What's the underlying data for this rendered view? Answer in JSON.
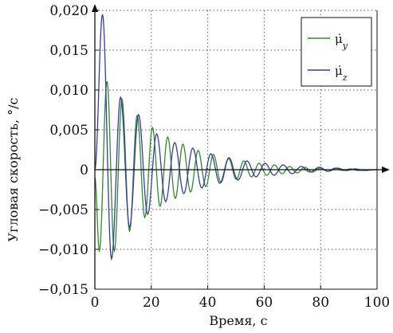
{
  "chart_data": {
    "type": "line",
    "xlabel": "Время, с",
    "ylabel": "Угловая скорость, °/с",
    "xlim": [
      0,
      100
    ],
    "ylim": [
      -0.015,
      0.02
    ],
    "x_ticks": [
      0,
      20,
      40,
      60,
      80,
      100
    ],
    "x_tick_labels": [
      "0",
      "20",
      "40",
      "60",
      "80",
      "100"
    ],
    "y_ticks": [
      -0.015,
      -0.01,
      -0.005,
      0,
      0.005,
      0.01,
      0.015,
      0.02
    ],
    "y_tick_labels": [
      "−0,015",
      "−0,010",
      "−0,005",
      "0",
      "0,005",
      "0,010",
      "0,015",
      "0,020"
    ],
    "grid": true,
    "legend_position": "top-right",
    "series": [
      {
        "name": "μ̇y",
        "label_base": "μ̇",
        "label_sub": "y",
        "color": "#2e8b2e",
        "start_value": -0.001,
        "extrema": [
          [
            1.6,
            -0.0102
          ],
          [
            4.3,
            0.0111
          ],
          [
            6.9,
            -0.0102
          ],
          [
            9.6,
            0.0088
          ],
          [
            12.3,
            -0.0077
          ],
          [
            15.0,
            0.0068
          ],
          [
            17.7,
            -0.006
          ],
          [
            20.4,
            0.0053
          ],
          [
            23.1,
            -0.0046
          ],
          [
            25.8,
            0.0041
          ],
          [
            28.5,
            -0.0036
          ],
          [
            31.2,
            0.0032
          ],
          [
            33.9,
            -0.0028
          ],
          [
            36.6,
            0.0024
          ],
          [
            39.3,
            -0.0021
          ],
          [
            42.0,
            0.0019
          ],
          [
            44.7,
            -0.0016
          ],
          [
            47.4,
            0.0014
          ],
          [
            50.1,
            -0.0012
          ],
          [
            52.8,
            0.0011
          ],
          [
            55.5,
            -0.0009
          ],
          [
            58.2,
            0.0008
          ],
          [
            60.9,
            -0.0007
          ],
          [
            63.6,
            0.0006
          ],
          [
            66.3,
            -0.0005
          ],
          [
            69.0,
            0.0004
          ],
          [
            71.7,
            -0.0004
          ],
          [
            74.4,
            0.0003
          ],
          [
            77.1,
            -0.0003
          ],
          [
            79.8,
            0.0002
          ],
          [
            82.5,
            -0.0002
          ],
          [
            85.2,
            0.0002
          ],
          [
            87.9,
            -0.0001
          ],
          [
            90.6,
            0.0001
          ],
          [
            93.3,
            -0.0001
          ],
          [
            100.0,
            0.0
          ]
        ]
      },
      {
        "name": "μ̇z",
        "label_base": "μ̇",
        "label_sub": "z",
        "color": "#3a3aa0",
        "start_value": 0.0,
        "extrema": [
          [
            2.7,
            0.0195
          ],
          [
            5.9,
            -0.0112
          ],
          [
            9.1,
            0.0091
          ],
          [
            12.3,
            -0.0072
          ],
          [
            15.5,
            0.0069
          ],
          [
            18.7,
            -0.0056
          ],
          [
            21.9,
            0.0045
          ],
          [
            25.1,
            -0.004
          ],
          [
            28.3,
            0.0034
          ],
          [
            31.5,
            -0.003
          ],
          [
            34.7,
            0.0027
          ],
          [
            37.9,
            -0.0023
          ],
          [
            41.1,
            0.002
          ],
          [
            44.3,
            -0.0017
          ],
          [
            47.5,
            0.0015
          ],
          [
            50.7,
            -0.0013
          ],
          [
            53.9,
            0.0011
          ],
          [
            57.1,
            -0.0009
          ],
          [
            60.3,
            0.0008
          ],
          [
            63.5,
            -0.0007
          ],
          [
            66.7,
            0.0006
          ],
          [
            69.9,
            -0.0005
          ],
          [
            73.1,
            0.0004
          ],
          [
            76.3,
            -0.0003
          ],
          [
            79.5,
            0.0003
          ],
          [
            82.7,
            -0.0002
          ],
          [
            85.9,
            0.0002
          ],
          [
            89.1,
            -0.0001
          ],
          [
            92.3,
            0.0001
          ],
          [
            95.5,
            -0.0001
          ],
          [
            100.0,
            0.0
          ]
        ]
      }
    ]
  }
}
